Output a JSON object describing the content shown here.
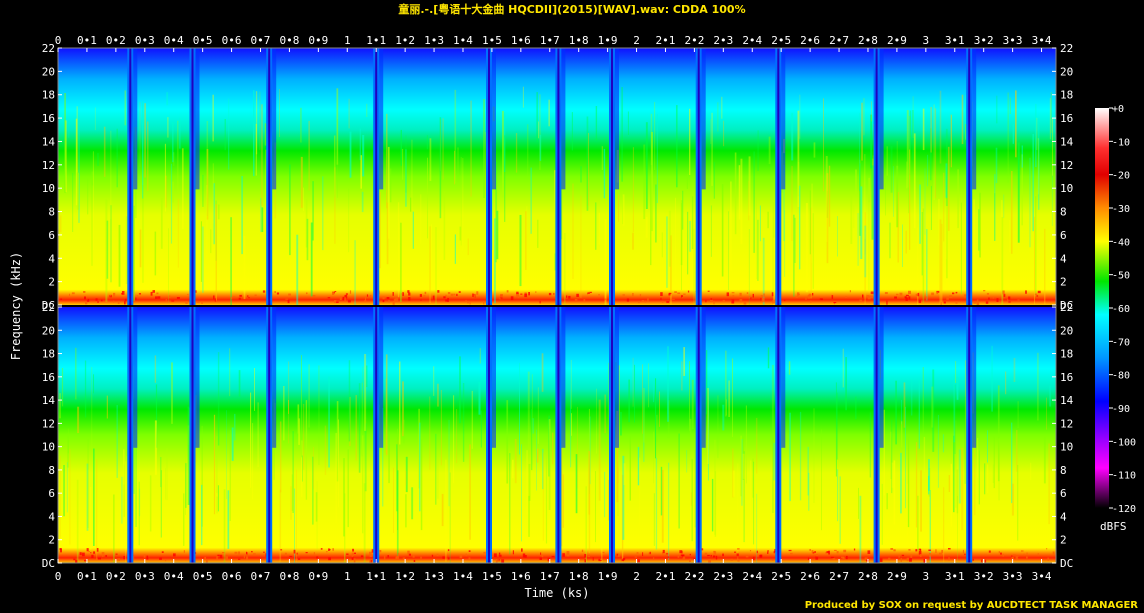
{
  "title": "童丽.-.[粤语十大金曲 HQCDII](2015)[WAV].wav: CDDA 100%",
  "footer": "Produced by SOX on request by AUCDTECT TASK MANAGER",
  "colors": {
    "title": "#ffe600",
    "axis": "#ffffff",
    "background": "#000000"
  },
  "chart_data": {
    "type": "heatmap",
    "xlabel": "Time (ks)",
    "ylabel": "Frequency (kHz)",
    "colorbar_label": "dBFS",
    "xlim": [
      0,
      3.45
    ],
    "ylim": [
      0,
      22
    ],
    "x_ticks": [
      {
        "v": 0,
        "label": "0"
      },
      {
        "v": 0.1,
        "label": "0•1"
      },
      {
        "v": 0.2,
        "label": "0•2"
      },
      {
        "v": 0.3,
        "label": "0•3"
      },
      {
        "v": 0.4,
        "label": "0•4"
      },
      {
        "v": 0.5,
        "label": "0•5"
      },
      {
        "v": 0.6,
        "label": "0•6"
      },
      {
        "v": 0.7,
        "label": "0•7"
      },
      {
        "v": 0.8,
        "label": "0•8"
      },
      {
        "v": 0.9,
        "label": "0•9"
      },
      {
        "v": 1,
        "label": "1"
      },
      {
        "v": 1.1,
        "label": "1•1"
      },
      {
        "v": 1.2,
        "label": "1•2"
      },
      {
        "v": 1.3,
        "label": "1•3"
      },
      {
        "v": 1.4,
        "label": "1•4"
      },
      {
        "v": 1.5,
        "label": "1•5"
      },
      {
        "v": 1.6,
        "label": "1•6"
      },
      {
        "v": 1.7,
        "label": "1•7"
      },
      {
        "v": 1.8,
        "label": "1•8"
      },
      {
        "v": 1.9,
        "label": "1•9"
      },
      {
        "v": 2,
        "label": "2"
      },
      {
        "v": 2.1,
        "label": "2•1"
      },
      {
        "v": 2.2,
        "label": "2•2"
      },
      {
        "v": 2.3,
        "label": "2•3"
      },
      {
        "v": 2.4,
        "label": "2•4"
      },
      {
        "v": 2.5,
        "label": "2•5"
      },
      {
        "v": 2.6,
        "label": "2•6"
      },
      {
        "v": 2.7,
        "label": "2•7"
      },
      {
        "v": 2.8,
        "label": "2•8"
      },
      {
        "v": 2.9,
        "label": "2•9"
      },
      {
        "v": 3,
        "label": "3"
      },
      {
        "v": 3.1,
        "label": "3•1"
      },
      {
        "v": 3.2,
        "label": "3•2"
      },
      {
        "v": 3.3,
        "label": "3•3"
      },
      {
        "v": 3.4,
        "label": "3•4"
      }
    ],
    "y_ticks": [
      {
        "v": 0,
        "label": "DC"
      },
      {
        "v": 2,
        "label": "2"
      },
      {
        "v": 4,
        "label": "4"
      },
      {
        "v": 6,
        "label": "6"
      },
      {
        "v": 8,
        "label": "8"
      },
      {
        "v": 10,
        "label": "10"
      },
      {
        "v": 12,
        "label": "12"
      },
      {
        "v": 14,
        "label": "14"
      },
      {
        "v": 16,
        "label": "16"
      },
      {
        "v": 18,
        "label": "18"
      },
      {
        "v": 20,
        "label": "20"
      },
      {
        "v": 22,
        "label": "22"
      }
    ],
    "channels": 2,
    "track_boundaries_ks": [
      0.25,
      0.465,
      0.73,
      1.1,
      1.49,
      1.73,
      1.915,
      2.215,
      2.49,
      2.83,
      3.15
    ],
    "colorbar": {
      "min": -120,
      "max": 0,
      "ticks": [
        {
          "v": 0,
          "label": "+0"
        },
        {
          "v": -10,
          "label": "-10"
        },
        {
          "v": -20,
          "label": "-20"
        },
        {
          "v": -30,
          "label": "-30"
        },
        {
          "v": -40,
          "label": "-40"
        },
        {
          "v": -50,
          "label": "-50"
        },
        {
          "v": -60,
          "label": "-60"
        },
        {
          "v": -70,
          "label": "-70"
        },
        {
          "v": -80,
          "label": "-80"
        },
        {
          "v": -90,
          "label": "-90"
        },
        {
          "v": -100,
          "label": "-100"
        },
        {
          "v": -110,
          "label": "-110"
        },
        {
          "v": -120,
          "label": "-120"
        }
      ],
      "stops": [
        {
          "db": 0,
          "color": "#ffffff"
        },
        {
          "db": -12,
          "color": "#ff3030"
        },
        {
          "db": -20,
          "color": "#e00000"
        },
        {
          "db": -30,
          "color": "#ff8c00"
        },
        {
          "db": -40,
          "color": "#ffff00"
        },
        {
          "db": -52,
          "color": "#00e600"
        },
        {
          "db": -62,
          "color": "#00ffff"
        },
        {
          "db": -75,
          "color": "#0096ff"
        },
        {
          "db": -88,
          "color": "#0000ff"
        },
        {
          "db": -100,
          "color": "#a000ff"
        },
        {
          "db": -108,
          "color": "#ff00ff"
        },
        {
          "db": -120,
          "color": "#000000"
        }
      ]
    }
  }
}
